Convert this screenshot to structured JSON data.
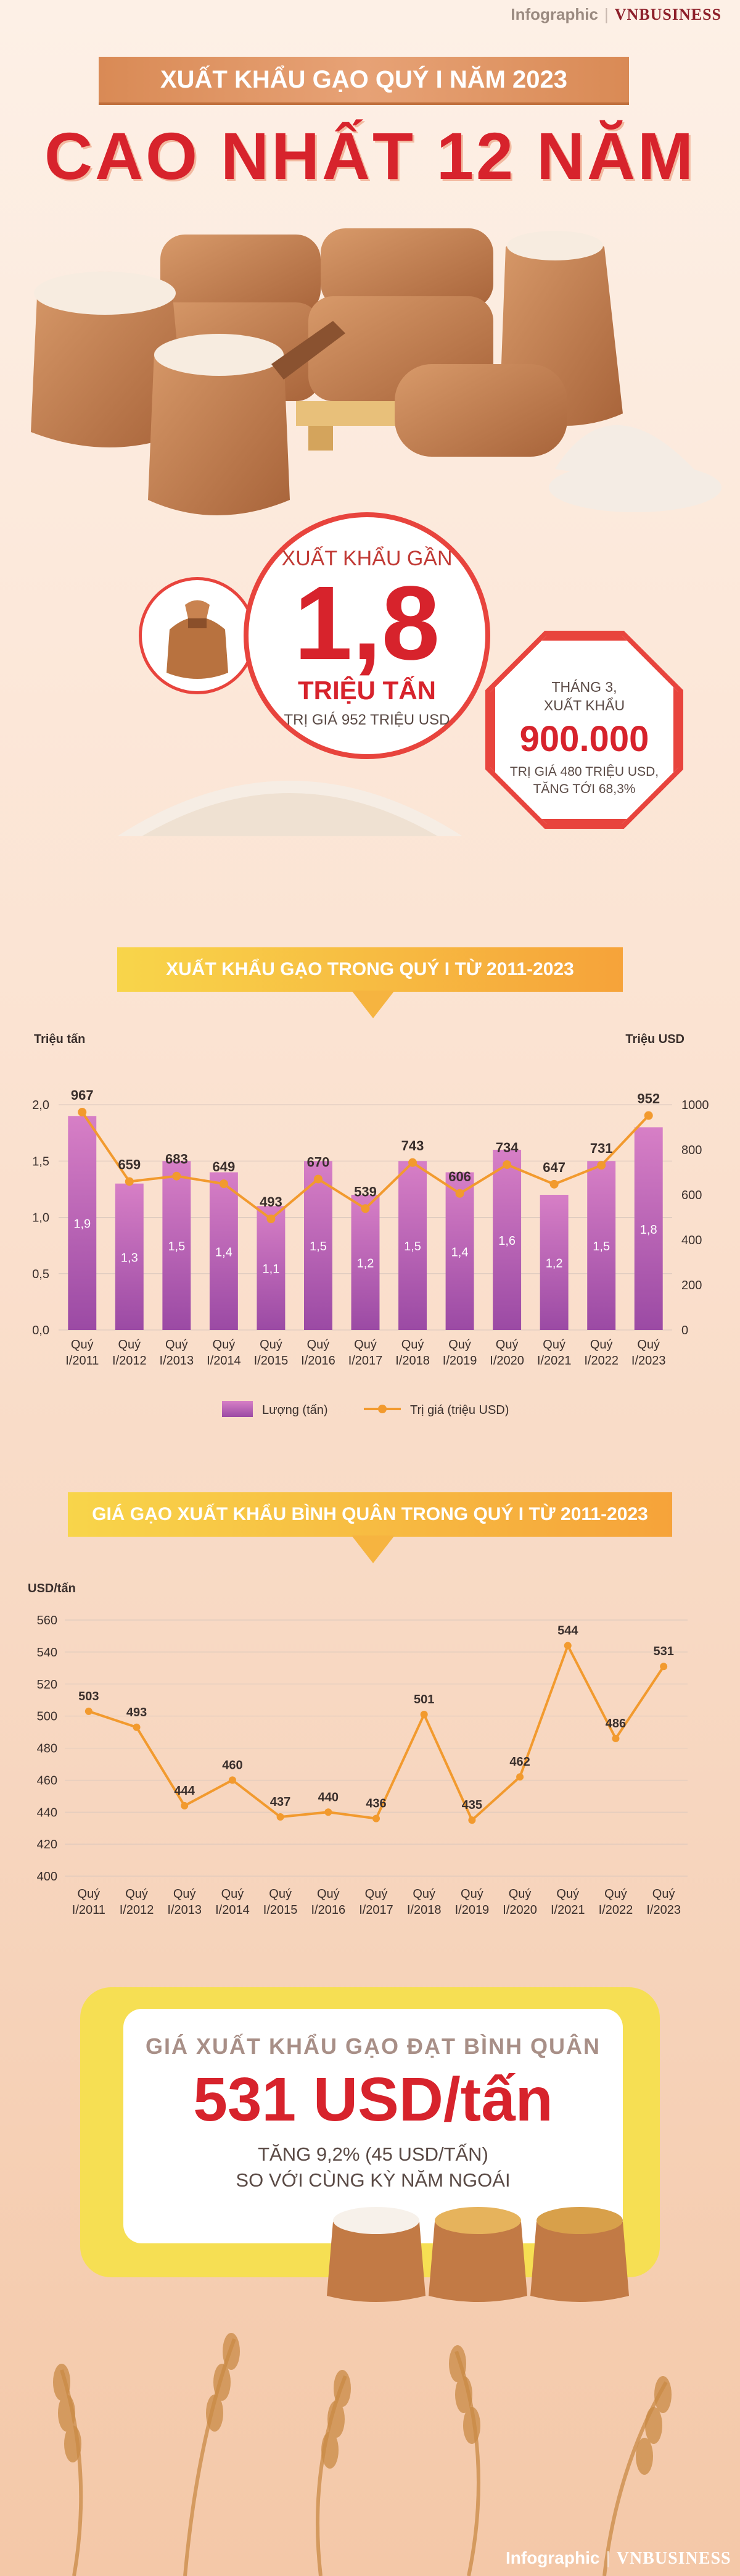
{
  "brand": {
    "infographic": "Infographic",
    "separator": "|",
    "publisher": "VNBUSINESS"
  },
  "header": {
    "kicker": "XUẤT KHẨU GẠO QUÝ I NĂM 2023",
    "headline": "CAO NHẤT 12 NĂM"
  },
  "highlight": {
    "prefix": "XUẤT KHẨU GẦN",
    "value": "1,8",
    "unit": "TRIỆU TẤN",
    "note": "TRỊ GIÁ 952 TRIỆU USD"
  },
  "march": {
    "line1": "THÁNG 3,",
    "line2": "XUẤT KHẨU",
    "value": "900.000",
    "line3": "TRỊ GIÁ 480 TRIỆU USD,",
    "line4": "TĂNG TỚI 68,3%"
  },
  "sections": {
    "chart1_title": "XUẤT KHẨU GẠO TRONG QUÝ I TỪ 2011-2023",
    "chart2_title": "GIÁ GẠO XUẤT KHẨU BÌNH QUÂN TRONG QUÝ I TỪ 2011-2023"
  },
  "summary": {
    "title": "GIÁ XUẤT KHẨU GẠO ĐẠT BÌNH QUÂN",
    "value": "531 USD/tấn",
    "line1": "TĂNG 9,2% (45 USD/TẤN)",
    "line2": "SO VỚI CÙNG KỲ NĂM NGOÁI"
  },
  "colors": {
    "accent_red": "#d7232c",
    "bar_purple": "#b65cb4",
    "line_orange": "#f29a2e"
  },
  "chart_data": [
    {
      "type": "bar",
      "categories": [
        "Quý I/2011",
        "Quý I/2012",
        "Quý I/2013",
        "Quý I/2014",
        "Quý I/2015",
        "Quý I/2016",
        "Quý I/2017",
        "Quý I/2018",
        "Quý I/2019",
        "Quý I/2020",
        "Quý I/2021",
        "Quý I/2022",
        "Quý I/2023"
      ],
      "category_lines": [
        [
          "Quý",
          "I/2011"
        ],
        [
          "Quý",
          "I/2012"
        ],
        [
          "Quý",
          "I/2013"
        ],
        [
          "Quý",
          "I/2014"
        ],
        [
          "Quý",
          "I/2015"
        ],
        [
          "Quý",
          "I/2016"
        ],
        [
          "Quý",
          "I/2017"
        ],
        [
          "Quý",
          "I/2018"
        ],
        [
          "Quý",
          "I/2019"
        ],
        [
          "Quý",
          "I/2020"
        ],
        [
          "Quý",
          "I/2021"
        ],
        [
          "Quý",
          "I/2022"
        ],
        [
          "Quý",
          "I/2023"
        ]
      ],
      "series": [
        {
          "name": "Lượng (tấn)",
          "axis": "left",
          "type": "bar",
          "values": [
            1.9,
            1.3,
            1.5,
            1.4,
            1.1,
            1.5,
            1.2,
            1.5,
            1.4,
            1.6,
            1.2,
            1.5,
            1.8
          ],
          "labels": [
            "1,9",
            "1,3",
            "1,5",
            "1,4",
            "1,1",
            "1,5",
            "1,2",
            "1,5",
            "1,4",
            "1,6",
            "1,2",
            "1,5",
            "1,8"
          ]
        },
        {
          "name": "Trị giá (triệu USD)",
          "axis": "right",
          "type": "line",
          "values": [
            967,
            659,
            683,
            649,
            493,
            670,
            539,
            743,
            606,
            734,
            647,
            731,
            952
          ]
        }
      ],
      "ylabel_left": "Triệu tấn",
      "ylabel_right": "Triệu USD",
      "ylim_left": [
        0,
        2.0
      ],
      "ylim_right": [
        0,
        1000
      ],
      "yticks_left": [
        "0,0",
        "0,5",
        "1,0",
        "1,5",
        "2,0"
      ],
      "yticks_right": [
        "0",
        "200",
        "400",
        "600",
        "800",
        "1000"
      ],
      "grid": true,
      "legend": "bottom"
    },
    {
      "type": "line",
      "categories": [
        "Quý I/2011",
        "Quý I/2012",
        "Quý I/2013",
        "Quý I/2014",
        "Quý I/2015",
        "Quý I/2016",
        "Quý I/2017",
        "Quý I/2018",
        "Quý I/2019",
        "Quý I/2020",
        "Quý I/2021",
        "Quý I/2022",
        "Quý I/2023"
      ],
      "category_lines": [
        [
          "Quý",
          "I/2011"
        ],
        [
          "Quý",
          "I/2012"
        ],
        [
          "Quý",
          "I/2013"
        ],
        [
          "Quý",
          "I/2014"
        ],
        [
          "Quý",
          "I/2015"
        ],
        [
          "Quý",
          "I/2016"
        ],
        [
          "Quý",
          "I/2017"
        ],
        [
          "Quý",
          "I/2018"
        ],
        [
          "Quý",
          "I/2019"
        ],
        [
          "Quý",
          "I/2020"
        ],
        [
          "Quý",
          "I/2021"
        ],
        [
          "Quý",
          "I/2022"
        ],
        [
          "Quý",
          "I/2023"
        ]
      ],
      "values": [
        503,
        493,
        444,
        460,
        437,
        440,
        436,
        501,
        435,
        462,
        544,
        486,
        531
      ],
      "ylabel": "USD/tấn",
      "ylim": [
        400,
        560
      ],
      "yticks": [
        "400",
        "420",
        "440",
        "460",
        "480",
        "500",
        "520",
        "540",
        "560"
      ],
      "grid": true
    }
  ]
}
